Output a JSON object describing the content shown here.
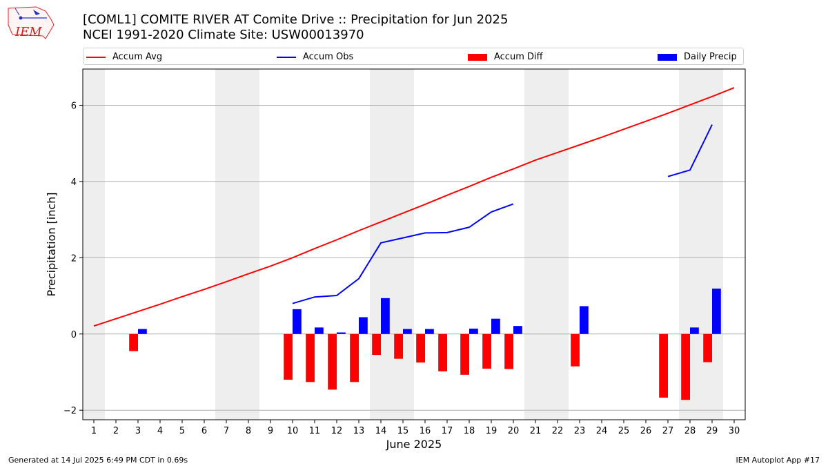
{
  "title_line1": "[COML1] COMITE RIVER  AT Comite Drive :: Precipitation for Jun 2025",
  "title_line2": "NCEI 1991-2020 Climate Site: USW00013970",
  "logo_text": "IEM",
  "footer_left": "Generated at 14 Jul 2025 6:49 PM CDT in 0.69s",
  "footer_right": "IEM Autoplot App #17",
  "colors": {
    "avg": "#ff0000",
    "obs": "#0000ff",
    "diff": "#ff0000",
    "daily": "#0000ff",
    "weekend": "#eeeeee",
    "grid": "#b0b0b0"
  },
  "chart_data": {
    "type": "bar",
    "xlabel": "June 2025",
    "ylabel": "Precipitation [inch]",
    "xlim": [
      0.5,
      30.5
    ],
    "ylim": [
      -2.25,
      6.95
    ],
    "x_ticks": [
      1,
      2,
      3,
      4,
      5,
      6,
      7,
      8,
      9,
      10,
      11,
      12,
      13,
      14,
      15,
      16,
      17,
      18,
      19,
      20,
      21,
      22,
      23,
      24,
      25,
      26,
      27,
      28,
      29,
      30
    ],
    "y_ticks": [
      -2,
      0,
      2,
      4,
      6
    ],
    "grid": "y",
    "legend_position": "top",
    "weekend_days": [
      1,
      7,
      8,
      14,
      15,
      21,
      22,
      28,
      29
    ],
    "series": [
      {
        "name": "Accum Avg",
        "kind": "line",
        "x": [
          1,
          2,
          3,
          4,
          5,
          6,
          7,
          8,
          9,
          10,
          11,
          12,
          13,
          14,
          15,
          16,
          17,
          18,
          19,
          20,
          21,
          22,
          23,
          24,
          25,
          26,
          27,
          28,
          29,
          30
        ],
        "values": [
          0.21,
          0.4,
          0.59,
          0.78,
          0.98,
          1.17,
          1.37,
          1.58,
          1.78,
          2.0,
          2.24,
          2.47,
          2.71,
          2.94,
          3.17,
          3.4,
          3.64,
          3.87,
          4.11,
          4.33,
          4.56,
          4.76,
          4.96,
          5.16,
          5.37,
          5.58,
          5.79,
          6.01,
          6.23,
          6.46
        ]
      },
      {
        "name": "Accum Obs",
        "kind": "line",
        "x": [
          10,
          11,
          12,
          13,
          14,
          15,
          16,
          17,
          18,
          19,
          20,
          27,
          28,
          29
        ],
        "values": [
          0.8,
          0.97,
          1.01,
          1.45,
          2.39,
          2.52,
          2.65,
          2.66,
          2.8,
          3.2,
          3.41,
          4.13,
          4.3,
          5.49
        ],
        "segments": [
          [
            10,
            20
          ],
          [
            27,
            29
          ]
        ]
      },
      {
        "name": "Accum Diff",
        "kind": "bar",
        "x": [
          3,
          10,
          11,
          12,
          13,
          14,
          15,
          16,
          17,
          18,
          19,
          20,
          23,
          27,
          28,
          29
        ],
        "values": [
          -0.45,
          -1.2,
          -1.26,
          -1.46,
          -1.26,
          -0.55,
          -0.65,
          -0.75,
          -0.98,
          -1.07,
          -0.91,
          -0.92,
          -0.85,
          -1.67,
          -1.73,
          -0.74
        ]
      },
      {
        "name": "Daily Precip",
        "kind": "bar",
        "x": [
          3,
          10,
          11,
          12,
          13,
          14,
          15,
          16,
          18,
          19,
          20,
          23,
          28,
          29
        ],
        "values": [
          0.13,
          0.65,
          0.17,
          0.04,
          0.44,
          0.94,
          0.13,
          0.13,
          0.14,
          0.4,
          0.21,
          0.73,
          0.17,
          1.19
        ]
      }
    ]
  }
}
